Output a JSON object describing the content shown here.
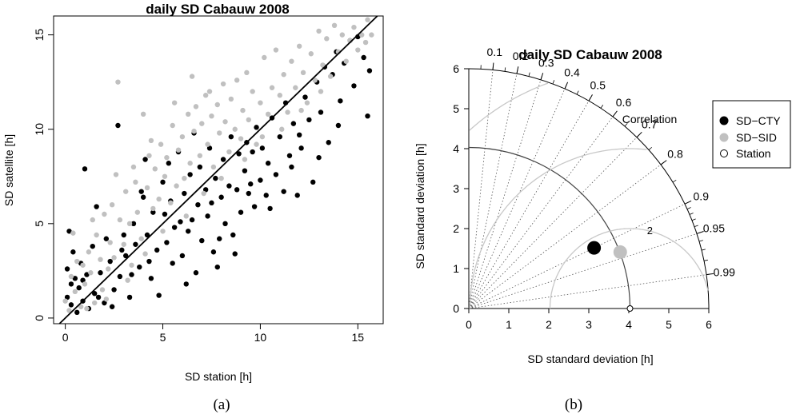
{
  "chart_data": [
    {
      "type": "scatter",
      "title": "daily SD Cabauw 2008",
      "xlabel": "SD station [h]",
      "ylabel": "SD satellite [h]",
      "panel_label": "(a)",
      "xlim": [
        -0.6,
        16.3
      ],
      "ylim": [
        -0.3,
        16.0
      ],
      "xticks": [
        0,
        5,
        10,
        15
      ],
      "yticks": [
        0,
        5,
        10,
        15
      ],
      "grid": false,
      "reference_line": {
        "slope": 1,
        "intercept": 0
      },
      "series": [
        {
          "color": "#000000",
          "points": [
            [
              0.1,
              2.6
            ],
            [
              0.2,
              4.6
            ],
            [
              0.1,
              1.1
            ],
            [
              0.3,
              0.7
            ],
            [
              0.4,
              3.5
            ],
            [
              0.5,
              2.1
            ],
            [
              0.6,
              0.3
            ],
            [
              0.7,
              1.6
            ],
            [
              0.8,
              2.9
            ],
            [
              0.9,
              0.9
            ],
            [
              1.0,
              7.9
            ],
            [
              1.1,
              2.3
            ],
            [
              1.2,
              0.5
            ],
            [
              1.4,
              3.8
            ],
            [
              1.5,
              1.3
            ],
            [
              1.6,
              5.9
            ],
            [
              1.8,
              2.4
            ],
            [
              2.0,
              0.8
            ],
            [
              2.1,
              4.2
            ],
            [
              2.3,
              3.0
            ],
            [
              2.5,
              1.5
            ],
            [
              2.7,
              10.2
            ],
            [
              2.8,
              2.2
            ],
            [
              3.0,
              4.4
            ],
            [
              3.1,
              3.3
            ],
            [
              3.3,
              1.1
            ],
            [
              3.5,
              5.0
            ],
            [
              3.6,
              3.9
            ],
            [
              3.8,
              2.7
            ],
            [
              4.0,
              6.4
            ],
            [
              4.1,
              8.4
            ],
            [
              4.2,
              4.4
            ],
            [
              4.4,
              2.1
            ],
            [
              4.5,
              5.6
            ],
            [
              4.7,
              3.6
            ],
            [
              4.8,
              1.2
            ],
            [
              5.0,
              7.2
            ],
            [
              5.1,
              5.5
            ],
            [
              5.2,
              4.0
            ],
            [
              5.4,
              6.2
            ],
            [
              5.5,
              2.9
            ],
            [
              5.6,
              4.8
            ],
            [
              5.8,
              8.8
            ],
            [
              5.9,
              5.1
            ],
            [
              6.0,
              3.3
            ],
            [
              6.1,
              6.6
            ],
            [
              6.3,
              4.6
            ],
            [
              6.4,
              7.6
            ],
            [
              6.5,
              5.2
            ],
            [
              6.7,
              2.4
            ],
            [
              6.8,
              6.0
            ],
            [
              6.9,
              8.0
            ],
            [
              7.0,
              4.1
            ],
            [
              7.2,
              6.8
            ],
            [
              7.3,
              5.4
            ],
            [
              7.4,
              9.0
            ],
            [
              7.6,
              3.5
            ],
            [
              7.7,
              7.4
            ],
            [
              7.8,
              2.7
            ],
            [
              8.0,
              6.4
            ],
            [
              8.1,
              8.4
            ],
            [
              8.2,
              5.0
            ],
            [
              8.4,
              7.0
            ],
            [
              8.5,
              9.6
            ],
            [
              8.6,
              4.4
            ],
            [
              8.8,
              6.8
            ],
            [
              8.9,
              8.7
            ],
            [
              9.0,
              5.6
            ],
            [
              9.2,
              7.8
            ],
            [
              9.3,
              9.3
            ],
            [
              9.4,
              6.6
            ],
            [
              9.6,
              8.8
            ],
            [
              9.7,
              5.9
            ],
            [
              9.8,
              10.1
            ],
            [
              10.0,
              7.3
            ],
            [
              10.1,
              9.0
            ],
            [
              10.3,
              6.5
            ],
            [
              10.4,
              8.2
            ],
            [
              10.6,
              10.6
            ],
            [
              10.8,
              7.6
            ],
            [
              11.0,
              9.6
            ],
            [
              11.2,
              6.7
            ],
            [
              11.3,
              11.4
            ],
            [
              11.5,
              8.6
            ],
            [
              11.7,
              10.3
            ],
            [
              11.9,
              6.5
            ],
            [
              12.1,
              9.0
            ],
            [
              12.3,
              11.7
            ],
            [
              12.5,
              10.5
            ],
            [
              12.7,
              7.2
            ],
            [
              12.9,
              12.5
            ],
            [
              13.1,
              10.9
            ],
            [
              13.3,
              13.3
            ],
            [
              13.5,
              9.3
            ],
            [
              13.7,
              12.9
            ],
            [
              13.9,
              14.1
            ],
            [
              14.1,
              11.5
            ],
            [
              14.3,
              13.5
            ],
            [
              14.6,
              14.7
            ],
            [
              14.8,
              12.3
            ],
            [
              15.0,
              14.9
            ],
            [
              15.3,
              13.8
            ],
            [
              15.5,
              10.7
            ],
            [
              15.6,
              13.1
            ],
            [
              0.3,
              1.8
            ],
            [
              0.9,
              2.0
            ],
            [
              1.7,
              1.1
            ],
            [
              2.4,
              0.6
            ],
            [
              3.4,
              2.3
            ],
            [
              4.3,
              3.0
            ],
            [
              6.2,
              1.8
            ],
            [
              7.9,
              4.2
            ],
            [
              8.7,
              3.4
            ],
            [
              9.5,
              7.1
            ],
            [
              10.5,
              5.8
            ],
            [
              11.6,
              8.0
            ],
            [
              12.0,
              9.7
            ],
            [
              13.0,
              8.5
            ],
            [
              14.0,
              10.2
            ],
            [
              5.3,
              8.2
            ],
            [
              6.6,
              9.8
            ],
            [
              7.5,
              6.1
            ],
            [
              3.9,
              6.7
            ],
            [
              2.9,
              3.6
            ]
          ]
        },
        {
          "color": "#c0c0c0",
          "points": [
            [
              0.0,
              0.9
            ],
            [
              0.2,
              0.4
            ],
            [
              0.3,
              2.2
            ],
            [
              0.5,
              1.4
            ],
            [
              0.6,
              3.0
            ],
            [
              0.8,
              0.6
            ],
            [
              0.9,
              2.8
            ],
            [
              1.0,
              1.8
            ],
            [
              1.2,
              3.5
            ],
            [
              1.3,
              2.4
            ],
            [
              1.5,
              0.8
            ],
            [
              1.6,
              4.4
            ],
            [
              1.8,
              3.1
            ],
            [
              1.9,
              1.5
            ],
            [
              2.0,
              5.5
            ],
            [
              2.2,
              2.6
            ],
            [
              2.3,
              4.0
            ],
            [
              2.5,
              3.2
            ],
            [
              2.7,
              12.5
            ],
            [
              2.8,
              5.2
            ],
            [
              3.0,
              3.9
            ],
            [
              3.1,
              6.7
            ],
            [
              3.3,
              5.0
            ],
            [
              3.4,
              2.8
            ],
            [
              3.6,
              7.2
            ],
            [
              3.7,
              5.6
            ],
            [
              3.9,
              4.2
            ],
            [
              4.0,
              10.8
            ],
            [
              4.2,
              6.9
            ],
            [
              4.3,
              8.6
            ],
            [
              4.5,
              5.8
            ],
            [
              4.6,
              7.9
            ],
            [
              4.8,
              6.3
            ],
            [
              4.9,
              9.2
            ],
            [
              5.1,
              7.5
            ],
            [
              5.2,
              8.5
            ],
            [
              5.4,
              6.1
            ],
            [
              5.5,
              10.2
            ],
            [
              5.7,
              7.0
            ],
            [
              5.8,
              8.9
            ],
            [
              6.0,
              9.6
            ],
            [
              6.1,
              7.4
            ],
            [
              6.3,
              10.8
            ],
            [
              6.4,
              8.2
            ],
            [
              6.6,
              9.9
            ],
            [
              6.7,
              11.2
            ],
            [
              6.9,
              8.6
            ],
            [
              7.0,
              10.3
            ],
            [
              7.2,
              11.8
            ],
            [
              7.3,
              9.2
            ],
            [
              7.5,
              10.7
            ],
            [
              7.6,
              8.0
            ],
            [
              7.8,
              11.3
            ],
            [
              7.9,
              9.8
            ],
            [
              8.1,
              12.4
            ],
            [
              8.2,
              10.4
            ],
            [
              8.4,
              8.8
            ],
            [
              8.5,
              11.6
            ],
            [
              8.7,
              10.0
            ],
            [
              8.8,
              12.6
            ],
            [
              9.0,
              9.5
            ],
            [
              9.1,
              11.0
            ],
            [
              9.3,
              13.0
            ],
            [
              9.4,
              10.5
            ],
            [
              9.6,
              12.0
            ],
            [
              9.8,
              9.2
            ],
            [
              10.0,
              11.4
            ],
            [
              10.2,
              13.8
            ],
            [
              10.4,
              10.8
            ],
            [
              10.6,
              12.2
            ],
            [
              10.8,
              14.2
            ],
            [
              11.0,
              11.8
            ],
            [
              11.2,
              12.9
            ],
            [
              11.4,
              10.9
            ],
            [
              11.6,
              13.6
            ],
            [
              11.8,
              12.2
            ],
            [
              12.0,
              14.4
            ],
            [
              12.2,
              13.0
            ],
            [
              12.4,
              11.4
            ],
            [
              12.6,
              14.0
            ],
            [
              12.8,
              12.6
            ],
            [
              13.0,
              15.2
            ],
            [
              13.2,
              13.4
            ],
            [
              13.4,
              14.8
            ],
            [
              13.6,
              12.8
            ],
            [
              13.8,
              15.5
            ],
            [
              14.0,
              14.1
            ],
            [
              14.2,
              15.0
            ],
            [
              14.4,
              13.6
            ],
            [
              14.6,
              14.7
            ],
            [
              14.8,
              15.4
            ],
            [
              15.0,
              14.2
            ],
            [
              15.2,
              15.0
            ],
            [
              15.4,
              14.6
            ],
            [
              15.5,
              15.8
            ],
            [
              15.7,
              15.0
            ],
            [
              1.1,
              0.5
            ],
            [
              2.1,
              1.0
            ],
            [
              3.2,
              2.0
            ],
            [
              4.1,
              3.4
            ],
            [
              5.0,
              4.6
            ],
            [
              6.2,
              5.4
            ],
            [
              7.1,
              6.6
            ],
            [
              8.0,
              7.4
            ],
            [
              9.2,
              8.4
            ],
            [
              10.1,
              9.6
            ],
            [
              11.1,
              10.0
            ],
            [
              12.1,
              11.0
            ],
            [
              13.1,
              12.0
            ],
            [
              2.6,
              7.6
            ],
            [
              3.5,
              8.0
            ],
            [
              4.4,
              9.4
            ],
            [
              5.6,
              11.4
            ],
            [
              6.5,
              12.8
            ],
            [
              7.4,
              12.0
            ],
            [
              0.4,
              4.5
            ],
            [
              1.4,
              5.2
            ],
            [
              2.4,
              6.0
            ]
          ]
        }
      ]
    },
    {
      "type": "taylor-diagram",
      "title": "daily SD Cabauw 2008",
      "xlabel": "SD standard deviation [h]",
      "ylabel": "SD standard deviation [h]",
      "panel_label": "(b)",
      "correlation_label": "Correlation",
      "sd_ticks": [
        "0",
        "1",
        "2",
        "3",
        "4",
        "5",
        "6"
      ],
      "sd_max": 6,
      "reference_sd": 4.03,
      "correlation_ticks": [
        "0.1",
        "0.2",
        "0.3",
        "0.4",
        "0.5",
        "0.6",
        "0.7",
        "0.8",
        "0.9",
        "0.95",
        "0.99"
      ],
      "rms_contours": [
        "2",
        "4",
        "6"
      ],
      "legend": {
        "position": "top-right",
        "entries": [
          {
            "label": "SD−CTY",
            "color": "#000000",
            "marker": "filled"
          },
          {
            "label": "SD−SID",
            "color": "#c0c0c0",
            "marker": "filled"
          },
          {
            "label": "Station",
            "color": "#000000",
            "marker": "open"
          }
        ]
      },
      "points": [
        {
          "name": "SD−CTY",
          "sd": 3.48,
          "correlation": 0.9
        },
        {
          "name": "SD−SID",
          "sd": 4.04,
          "correlation": 0.937
        },
        {
          "name": "Station",
          "sd": 4.03,
          "correlation": 1.0
        }
      ]
    }
  ]
}
